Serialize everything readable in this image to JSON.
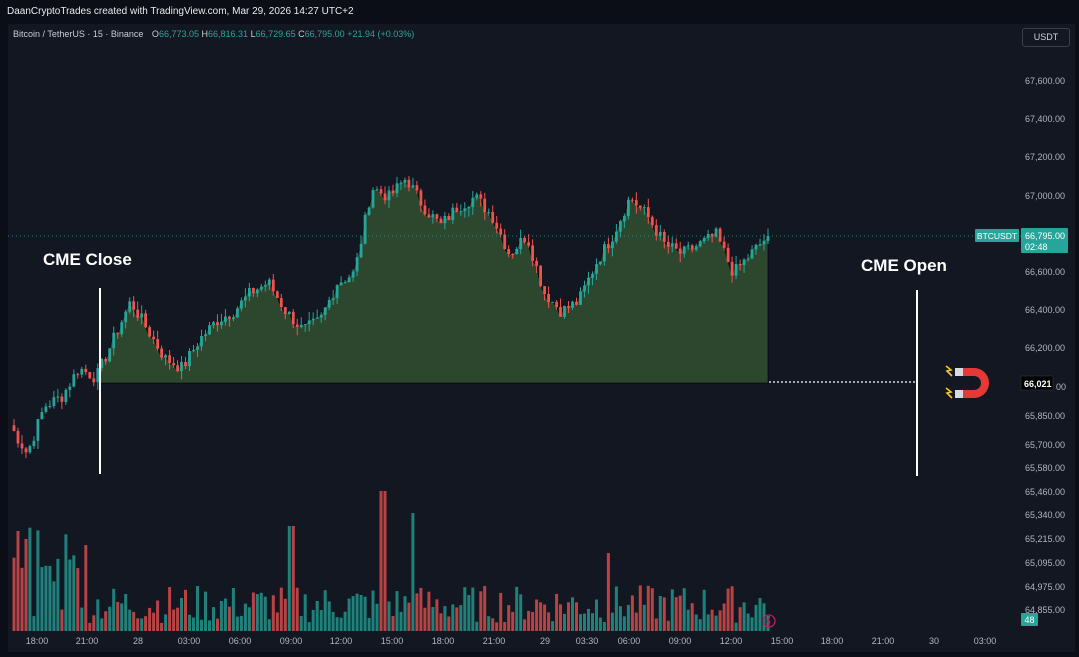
{
  "header": {
    "credit": "DaanCryptoTrades created with TradingView.com, Mar 29, 2026 14:27 UTC+2"
  },
  "legend": {
    "symbol": "Bitcoin / TetherUS · 15 · Binance",
    "open_label": "O",
    "open": "66,773.05",
    "high_label": "H",
    "high": "66,816.31",
    "low_label": "L",
    "low": "66,729.65",
    "close_label": "C",
    "close": "66,795.00",
    "change": "+21.94 (+0.03%)"
  },
  "currency": "USDT",
  "annotations": {
    "cme_close": "CME Close",
    "cme_open": "CME Open"
  },
  "markers": {
    "symbol_tag": "BTCUSDT",
    "last_price": "66,795.00",
    "countdown": "02:48",
    "gap_level": "66,021",
    "gap_level_suffix": "00",
    "volume_tag": "48"
  },
  "colors": {
    "up": "#26a69a",
    "down": "#ef5350",
    "fill": "#2d4a2f",
    "background": "#131722"
  },
  "chart_data": {
    "type": "area",
    "symbol": "BTCUSDT",
    "timeframe": "15",
    "x_ticks": [
      "18:00",
      "21:00",
      "28",
      "03:00",
      "06:00",
      "09:00",
      "12:00",
      "15:00",
      "18:00",
      "21:00",
      "29",
      "03:30",
      "06:00",
      "09:00",
      "12:00",
      "15:00",
      "18:00",
      "21:00",
      "30",
      "03:00"
    ],
    "y_ticks": [
      "67,600.00",
      "67,400.00",
      "67,200.00",
      "67,000.00",
      "66,800.00",
      "66,600.00",
      "66,400.00",
      "66,200.00",
      "65,850.00",
      "65,700.00",
      "65,580.00",
      "65,460.00",
      "65,340.00",
      "65,215.00",
      "65,095.00",
      "64,975.00",
      "64,855.00"
    ],
    "gap_level": 66021,
    "last_price": 66795,
    "series": [
      {
        "time": [
          "18:00",
          "19:00",
          "20:00",
          "21:00",
          "22:00",
          "23:00",
          "00:00",
          "01:00",
          "02:00",
          "03:00",
          "04:00",
          "05:00",
          "06:00",
          "07:00",
          "08:00",
          "09:00",
          "10:00",
          "11:00",
          "12:00",
          "13:00",
          "14:00",
          "15:00",
          "16:00",
          "17:00",
          "18:00",
          "19:00",
          "20:00",
          "21:00",
          "22:00",
          "23:00",
          "00:00",
          "01:00",
          "02:00",
          "03:30",
          "04:30",
          "05:30",
          "06:00",
          "07:00",
          "08:00",
          "09:00",
          "10:00",
          "11:00",
          "12:00",
          "13:00",
          "14:00"
        ],
        "values": [
          65800,
          65650,
          65900,
          65950,
          66100,
          66050,
          66250,
          66450,
          66300,
          66150,
          66100,
          66250,
          66350,
          66400,
          66500,
          66550,
          66400,
          66300,
          66350,
          66550,
          66600,
          67050,
          67000,
          67100,
          66950,
          66850,
          66950,
          67000,
          66900,
          66700,
          66800,
          66500,
          66400,
          66450,
          66650,
          66800,
          67000,
          66900,
          66750,
          66700,
          66750,
          66800,
          66600,
          66700,
          66795
        ]
      }
    ]
  }
}
